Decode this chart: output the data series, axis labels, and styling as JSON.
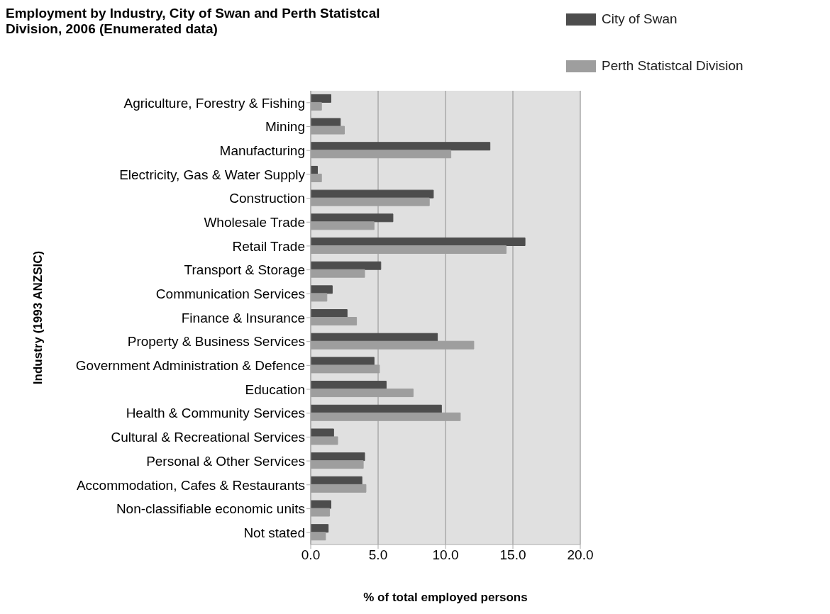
{
  "chart_data": {
    "type": "bar",
    "orientation": "horizontal",
    "title": "Employment by Industry, City of Swan and Perth Statistcal Division, 2006 (Enumerated data)",
    "xlabel": "% of total employed persons",
    "ylabel": "Industry  (1993 ANZSIC)",
    "categories": [
      "Agriculture, Forestry & Fishing",
      "Mining",
      "Manufacturing",
      "Electricity, Gas & Water Supply",
      "Construction",
      "Wholesale Trade",
      "Retail Trade",
      "Transport & Storage",
      "Communication Services",
      "Finance & Insurance",
      "Property & Business Services",
      "Government Administration & Defence",
      "Education",
      "Health & Community Services",
      "Cultural & Recreational Services",
      "Personal & Other Services",
      "Accommodation, Cafes & Restaurants",
      "Non-classifiable economic units",
      "Not stated"
    ],
    "series": [
      {
        "name": "City of Swan",
        "color": "#4d4d4d",
        "values": [
          1.5,
          2.2,
          13.3,
          0.5,
          9.1,
          6.1,
          15.9,
          5.2,
          1.6,
          2.7,
          9.4,
          4.7,
          5.6,
          9.7,
          1.7,
          4.0,
          3.8,
          1.5,
          1.3
        ]
      },
      {
        "name": "Perth Statistcal Division",
        "color": "#9e9e9e",
        "values": [
          0.8,
          2.5,
          10.4,
          0.8,
          8.8,
          4.7,
          14.5,
          4.0,
          1.2,
          3.4,
          12.1,
          5.1,
          7.6,
          11.1,
          2.0,
          3.9,
          4.1,
          1.4,
          1.1
        ]
      }
    ],
    "xlim": [
      0,
      20
    ],
    "xticks": [
      {
        "value": 0,
        "label": "0.0"
      },
      {
        "value": 5,
        "label": "5.0"
      },
      {
        "value": 10,
        "label": "10.0"
      },
      {
        "value": 15,
        "label": "15.0"
      },
      {
        "value": 20,
        "label": "20.0"
      }
    ],
    "grid": "x",
    "legend": "top right"
  }
}
